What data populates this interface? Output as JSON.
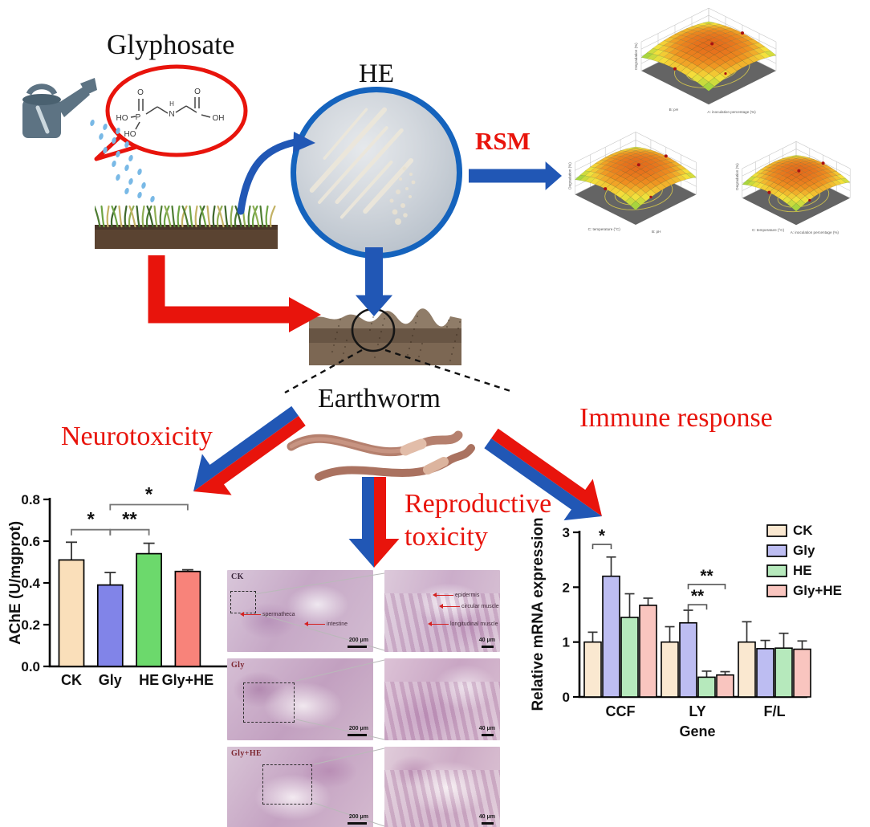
{
  "labels": {
    "glyphosate": "Glyphosate",
    "he": "HE",
    "rsm": "RSM",
    "earthworm": "Earthworm",
    "neurotoxicity": "Neurotoxicity",
    "reproductive_line1": "Reproductive",
    "reproductive_line2": "toxicity",
    "immune": "Immune response"
  },
  "chem": {
    "p": "P",
    "o_top": "O",
    "ho_left": "HO",
    "ho_bottom": "HO",
    "n": "N",
    "h": "H",
    "o_right": "O",
    "oh_right": "OH"
  },
  "colors": {
    "red": "#e8140c",
    "blue": "#2157b5",
    "bracket_gray": "#767676",
    "bars_left": [
      "#fadfba",
      "#8184e8",
      "#6cd96c",
      "#f8837a"
    ],
    "bars_right": [
      "#fae8d0",
      "#bdbdf2",
      "#b6e9bc",
      "#f9c5bf"
    ]
  },
  "rsm_plots": [
    {
      "zlabel": "Degradation (%)",
      "xlabel": "B: pH",
      "ylabel": "A: inoculation percentage (%)"
    },
    {
      "zlabel": "Degradation (%)",
      "xlabel": "C: temperature (°C)",
      "ylabel": "B: pH"
    },
    {
      "zlabel": "Degradation (%)",
      "xlabel": "C: temperature (°C)",
      "ylabel": "A: inoculation percentage (%)"
    }
  ],
  "chart_data": [
    {
      "type": "bar",
      "title": "",
      "ylabel": "AChE (U/mgprot)",
      "categories": [
        "CK",
        "Gly",
        "HE",
        "Gly+HE"
      ],
      "values": [
        0.51,
        0.39,
        0.54,
        0.455
      ],
      "errors_up": [
        0.085,
        0.06,
        0.05,
        0.008
      ],
      "ylim": [
        0,
        0.8
      ],
      "yticks": [
        "0.0",
        "0.2",
        "0.4",
        "0.6",
        "0.8"
      ],
      "grid": false,
      "significance": [
        {
          "from": "CK",
          "to": "Gly",
          "y": 0.655,
          "label": "*"
        },
        {
          "from": "Gly",
          "to": "HE",
          "y": 0.655,
          "label": "**"
        },
        {
          "from": "Gly",
          "to": "Gly+HE",
          "y": 0.775,
          "label": "*"
        }
      ]
    },
    {
      "type": "grouped-bar",
      "title": "",
      "xlabel": "Gene",
      "ylabel": "Relative mRNA expression",
      "categories": [
        "CCF",
        "LY",
        "F/L"
      ],
      "series": [
        {
          "name": "CK",
          "values": [
            1.0,
            1.0,
            1.0
          ],
          "errors_up": [
            0.18,
            0.28,
            0.37
          ]
        },
        {
          "name": "Gly",
          "values": [
            2.2,
            1.35,
            0.88
          ],
          "errors_up": [
            0.35,
            0.23,
            0.15
          ]
        },
        {
          "name": "HE",
          "values": [
            1.45,
            0.36,
            0.89
          ],
          "errors_up": [
            0.43,
            0.11,
            0.27
          ]
        },
        {
          "name": "Gly+HE",
          "values": [
            1.67,
            0.4,
            0.87
          ],
          "errors_up": [
            0.13,
            0.06,
            0.15
          ]
        }
      ],
      "ylim": [
        0,
        3
      ],
      "yticks": [
        "0",
        "1",
        "2",
        "3"
      ],
      "legend": [
        "CK",
        "Gly",
        "HE",
        "Gly+HE"
      ],
      "legend_position": "top-right",
      "grid": false,
      "significance": [
        {
          "group": "CCF",
          "from": "CK",
          "to": "Gly",
          "y": 2.78,
          "label": "*"
        },
        {
          "group": "LY",
          "from": "Gly",
          "to": "Gly+HE",
          "y": 2.05,
          "label": "**"
        },
        {
          "group": "LY",
          "from": "Gly",
          "to": "HE",
          "y": 1.68,
          "label": "**"
        }
      ]
    }
  ],
  "histology": {
    "rows": [
      {
        "label": "CK",
        "left_scale": "200 μm",
        "right_scale": "40 μm",
        "left_annotations": [
          "spermatheca",
          "intestine"
        ],
        "right_annotations": [
          "epidermis",
          "circular muscle",
          "longitudinal muscle"
        ]
      },
      {
        "label": "Gly",
        "left_scale": "200 μm",
        "right_scale": "40 μm",
        "left_annotations": [],
        "right_annotations": []
      },
      {
        "label": "Gly+HE",
        "left_scale": "200 μm",
        "right_scale": "40 μm",
        "left_annotations": [],
        "right_annotations": []
      }
    ]
  }
}
